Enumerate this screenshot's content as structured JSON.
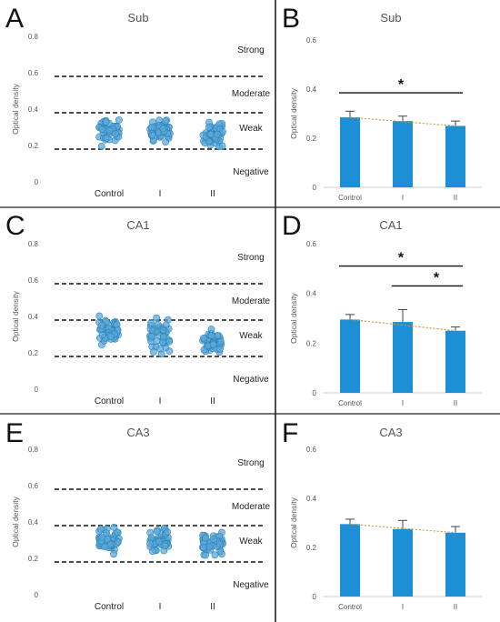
{
  "colors": {
    "point_fill": "#58a9d8",
    "point_stroke": "#2f7fb8",
    "bar_fill": "#1c8fd6",
    "trend": "#c89a3c",
    "axis_text": "#555555",
    "grid_dash": "#111111",
    "divider": "#222222"
  },
  "chart_data": [
    {
      "panel": "A",
      "type": "scatter",
      "title": "Sub",
      "ylabel": "Optical density",
      "ylim": [
        0,
        0.8
      ],
      "yticks": [
        "0",
        "0.2",
        "0.4",
        "0.6",
        "0.8"
      ],
      "categories": [
        "Control",
        "I",
        "II"
      ],
      "thresholds": [
        0.18,
        0.38,
        0.58
      ],
      "zones": [
        "Strong",
        "Moderate",
        "Weak",
        "Negative"
      ],
      "groups": [
        {
          "name": "Control",
          "center": 0.29,
          "min": 0.17,
          "max": 0.39
        },
        {
          "name": "I",
          "center": 0.27,
          "min": 0.19,
          "max": 0.37
        },
        {
          "name": "II",
          "center": 0.25,
          "min": 0.16,
          "max": 0.37
        }
      ]
    },
    {
      "panel": "B",
      "type": "bar",
      "title": "Sub",
      "ylabel": "Optical density",
      "ylim": [
        0,
        0.6
      ],
      "yticks": [
        "0",
        "0.2",
        "0.4",
        "0.6"
      ],
      "categories": [
        "Control",
        "I",
        "II"
      ],
      "values": [
        0.285,
        0.27,
        0.25
      ],
      "errors": [
        0.025,
        0.02,
        0.02
      ],
      "trendline": true,
      "significance": [
        {
          "from": 0,
          "to": 2,
          "label": "*"
        }
      ]
    },
    {
      "panel": "C",
      "type": "scatter",
      "title": "CA1",
      "ylabel": "Optical density",
      "ylim": [
        0,
        0.8
      ],
      "yticks": [
        "0",
        "0.2",
        "0.4",
        "0.6",
        "0.8"
      ],
      "categories": [
        "Control",
        "I",
        "II"
      ],
      "thresholds": [
        0.18,
        0.38,
        0.58
      ],
      "zones": [
        "Strong",
        "Moderate",
        "Weak",
        "Negative"
      ],
      "groups": [
        {
          "name": "Control",
          "center": 0.3,
          "min": 0.22,
          "max": 0.41
        },
        {
          "name": "I",
          "center": 0.29,
          "min": 0.18,
          "max": 0.42
        },
        {
          "name": "II",
          "center": 0.25,
          "min": 0.18,
          "max": 0.34
        }
      ]
    },
    {
      "panel": "D",
      "type": "bar",
      "title": "CA1",
      "ylabel": "Optical density",
      "ylim": [
        0,
        0.6
      ],
      "yticks": [
        "0",
        "0.2",
        "0.4",
        "0.6"
      ],
      "categories": [
        "Control",
        "I",
        "II"
      ],
      "values": [
        0.295,
        0.285,
        0.25
      ],
      "errors": [
        0.02,
        0.05,
        0.015
      ],
      "trendline": true,
      "significance": [
        {
          "from": 0,
          "to": 2,
          "label": "*"
        },
        {
          "from": 1,
          "to": 2,
          "label": "*"
        }
      ]
    },
    {
      "panel": "E",
      "type": "scatter",
      "title": "CA3",
      "ylabel": "Optical density",
      "ylim": [
        0,
        0.8
      ],
      "yticks": [
        "0",
        "0.2",
        "0.4",
        "0.6",
        "0.8"
      ],
      "categories": [
        "Control",
        "I",
        "II"
      ],
      "thresholds": [
        0.18,
        0.38,
        0.58
      ],
      "zones": [
        "Strong",
        "Moderate",
        "Weak",
        "Negative"
      ],
      "groups": [
        {
          "name": "Control",
          "center": 0.3,
          "min": 0.21,
          "max": 0.39
        },
        {
          "name": "I",
          "center": 0.28,
          "min": 0.19,
          "max": 0.4
        },
        {
          "name": "II",
          "center": 0.27,
          "min": 0.19,
          "max": 0.37
        }
      ]
    },
    {
      "panel": "F",
      "type": "bar",
      "title": "CA3",
      "ylabel": "Optical density",
      "ylim": [
        0,
        0.6
      ],
      "yticks": [
        "0",
        "0.2",
        "0.4",
        "0.6"
      ],
      "categories": [
        "Control",
        "I",
        "II"
      ],
      "values": [
        0.295,
        0.275,
        0.26
      ],
      "errors": [
        0.02,
        0.035,
        0.025
      ],
      "trendline": true,
      "significance": []
    }
  ]
}
